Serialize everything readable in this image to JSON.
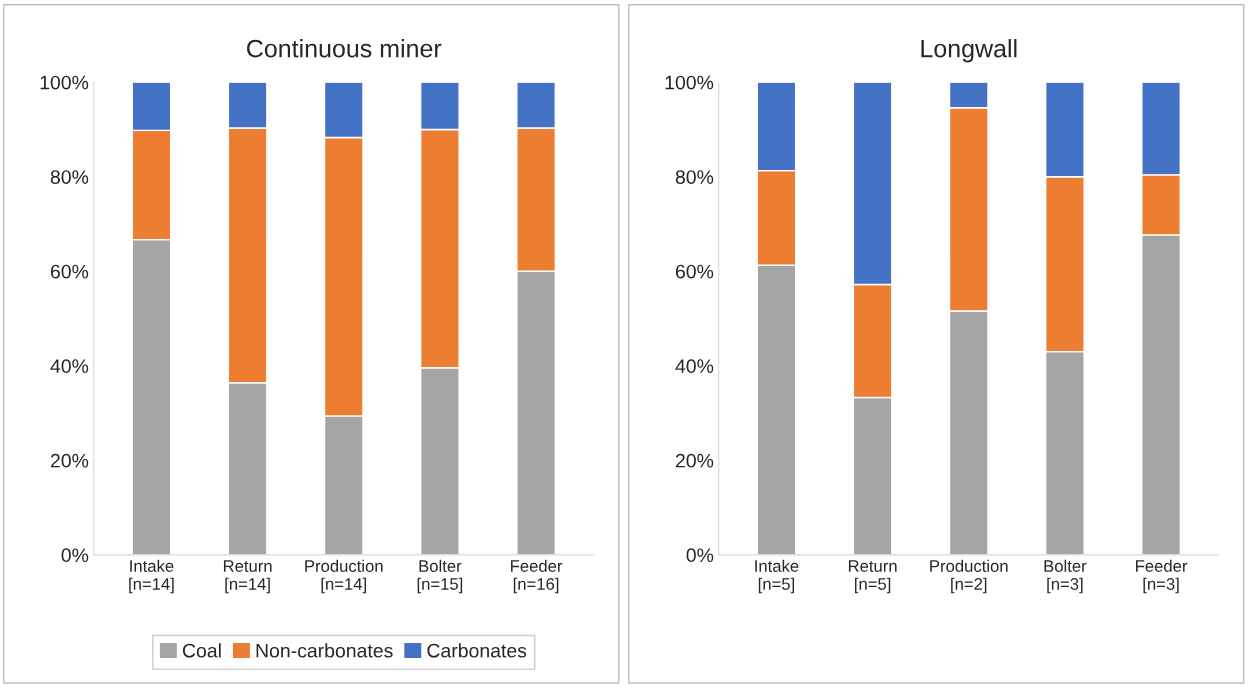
{
  "chart_data": [
    {
      "type": "bar",
      "title": "Continuous miner",
      "stacked": true,
      "categories": [
        "Intake\n[n=14]",
        "Return\n[n=14]",
        "Production\n[n=14]",
        "Bolter\n[n=15]",
        "Feeder\n[n=16]"
      ],
      "series": [
        {
          "name": "Coal",
          "color": "#a5a5a5",
          "values": [
            66.7,
            36.4,
            29.4,
            39.6,
            60.0
          ]
        },
        {
          "name": "Non-carbonates",
          "color": "#ed7d31",
          "values": [
            23.1,
            53.9,
            58.9,
            50.4,
            30.3
          ]
        },
        {
          "name": "Carbonates",
          "color": "#4472c4",
          "values": [
            10.2,
            9.7,
            11.7,
            10.0,
            9.7
          ]
        }
      ],
      "ylim": [
        0,
        100
      ],
      "yticks": [
        {
          "value": 0,
          "label": "0%"
        },
        {
          "value": 20,
          "label": "20%"
        },
        {
          "value": 40,
          "label": "40%"
        },
        {
          "value": 60,
          "label": "60%"
        },
        {
          "value": 80,
          "label": "80%"
        },
        {
          "value": 100,
          "label": "100%"
        }
      ],
      "legend": "bottom"
    },
    {
      "type": "bar",
      "title": "Longwall",
      "stacked": true,
      "categories": [
        "Intake\n[n=5]",
        "Return\n[n=5]",
        "Production\n[n=2]",
        "Bolter\n[n=3]",
        "Feeder\n[n=3]"
      ],
      "series": [
        {
          "color": "#a5a5a5",
          "values": [
            61.3,
            33.3,
            51.6,
            43.0,
            67.7
          ]
        },
        {
          "color": "#ed7d31",
          "values": [
            20.0,
            23.9,
            43.0,
            37.0,
            12.7
          ]
        },
        {
          "color": "#4472c4",
          "values": [
            18.7,
            42.8,
            5.4,
            20.0,
            19.6
          ]
        }
      ],
      "ylim": [
        0,
        100
      ],
      "yticks": [
        {
          "value": 0,
          "label": "0%"
        },
        {
          "value": 20,
          "label": "20%"
        },
        {
          "value": 40,
          "label": "40%"
        },
        {
          "value": 60,
          "label": "60%"
        },
        {
          "value": 80,
          "label": "80%"
        },
        {
          "value": 100,
          "label": "100%"
        }
      ]
    }
  ]
}
